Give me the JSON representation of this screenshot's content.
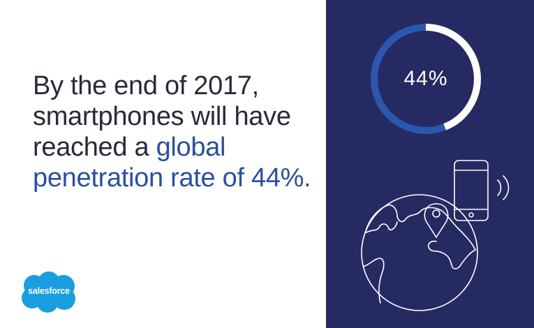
{
  "headline": {
    "line1": "By the end of 2017,",
    "line2": "smartphones will have",
    "line3_prefix": "reached a ",
    "line3_highlight": "global",
    "line4_highlight": "penetration rate of 44%."
  },
  "donut": {
    "label": "44%",
    "progress_fraction": 0.44,
    "filled_color": "#ffffff",
    "remaining_color": "#2b57ae"
  },
  "logo": {
    "text": "salesforce",
    "color": "#1b9ee0"
  },
  "colors": {
    "panel_background": "#262a63",
    "headline_text": "#262b3a",
    "highlight_text": "#2a4fa0"
  },
  "icons": [
    "globe-icon",
    "smartphone-icon",
    "location-pin-icon",
    "signal-waves-icon"
  ]
}
